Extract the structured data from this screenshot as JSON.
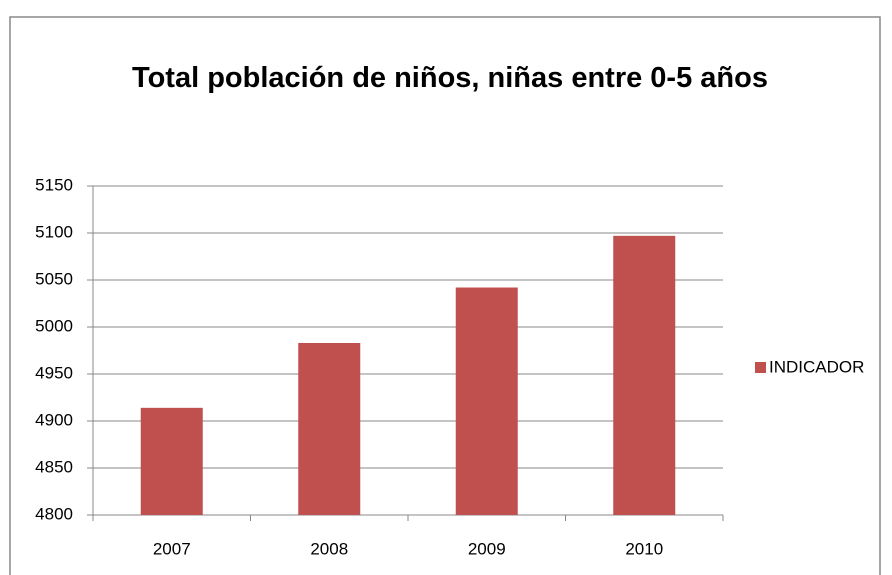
{
  "chart_data": {
    "type": "bar",
    "title": "Total población de niños, niñas entre 0-5 años",
    "categories": [
      "2007",
      "2008",
      "2009",
      "2010"
    ],
    "series": [
      {
        "name": "INDICADOR",
        "color": "#c0504d",
        "values": [
          4914,
          4983,
          5042,
          5097
        ]
      }
    ],
    "ylim": [
      4800,
      5150
    ],
    "yticks": [
      4800,
      4850,
      4900,
      4950,
      5000,
      5050,
      5100,
      5150
    ],
    "grid": true,
    "legend": "right"
  }
}
